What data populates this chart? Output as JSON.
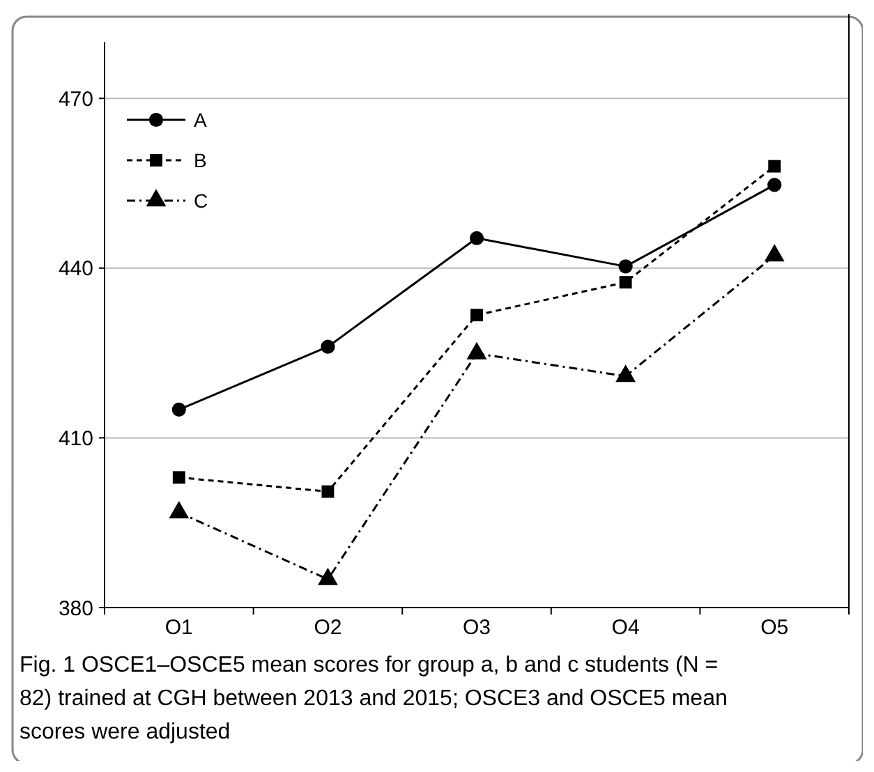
{
  "chart_data": {
    "type": "line",
    "categories": [
      "O1",
      "O2",
      "O3",
      "O4",
      "O5"
    ],
    "series": [
      {
        "name": "A",
        "color": "#000000",
        "marker": "circle",
        "line_style": "solid",
        "values": [
          415.0,
          426.1,
          445.3,
          440.3,
          454.7
        ]
      },
      {
        "name": "B",
        "color": "#000000",
        "marker": "square",
        "line_style": "dashed",
        "values": [
          403.0,
          400.5,
          431.7,
          437.5,
          458.0
        ]
      },
      {
        "name": "C",
        "color": "#000000",
        "marker": "triangle",
        "line_style": "dashdot",
        "values": [
          396.8,
          385.0,
          424.9,
          420.9,
          442.2
        ]
      }
    ],
    "ylim": [
      380,
      480
    ],
    "yticks": [
      380,
      410,
      440,
      470
    ],
    "grid": "y",
    "legend": "top left",
    "annotations": [
      "Fig. 1  OSCE1–OSCE5 mean scores for group a, b and c students (N = 82) trained at CGH between 2013 and 2015; OSCE3 and OSCE5 mean scores were adjusted"
    ]
  }
}
